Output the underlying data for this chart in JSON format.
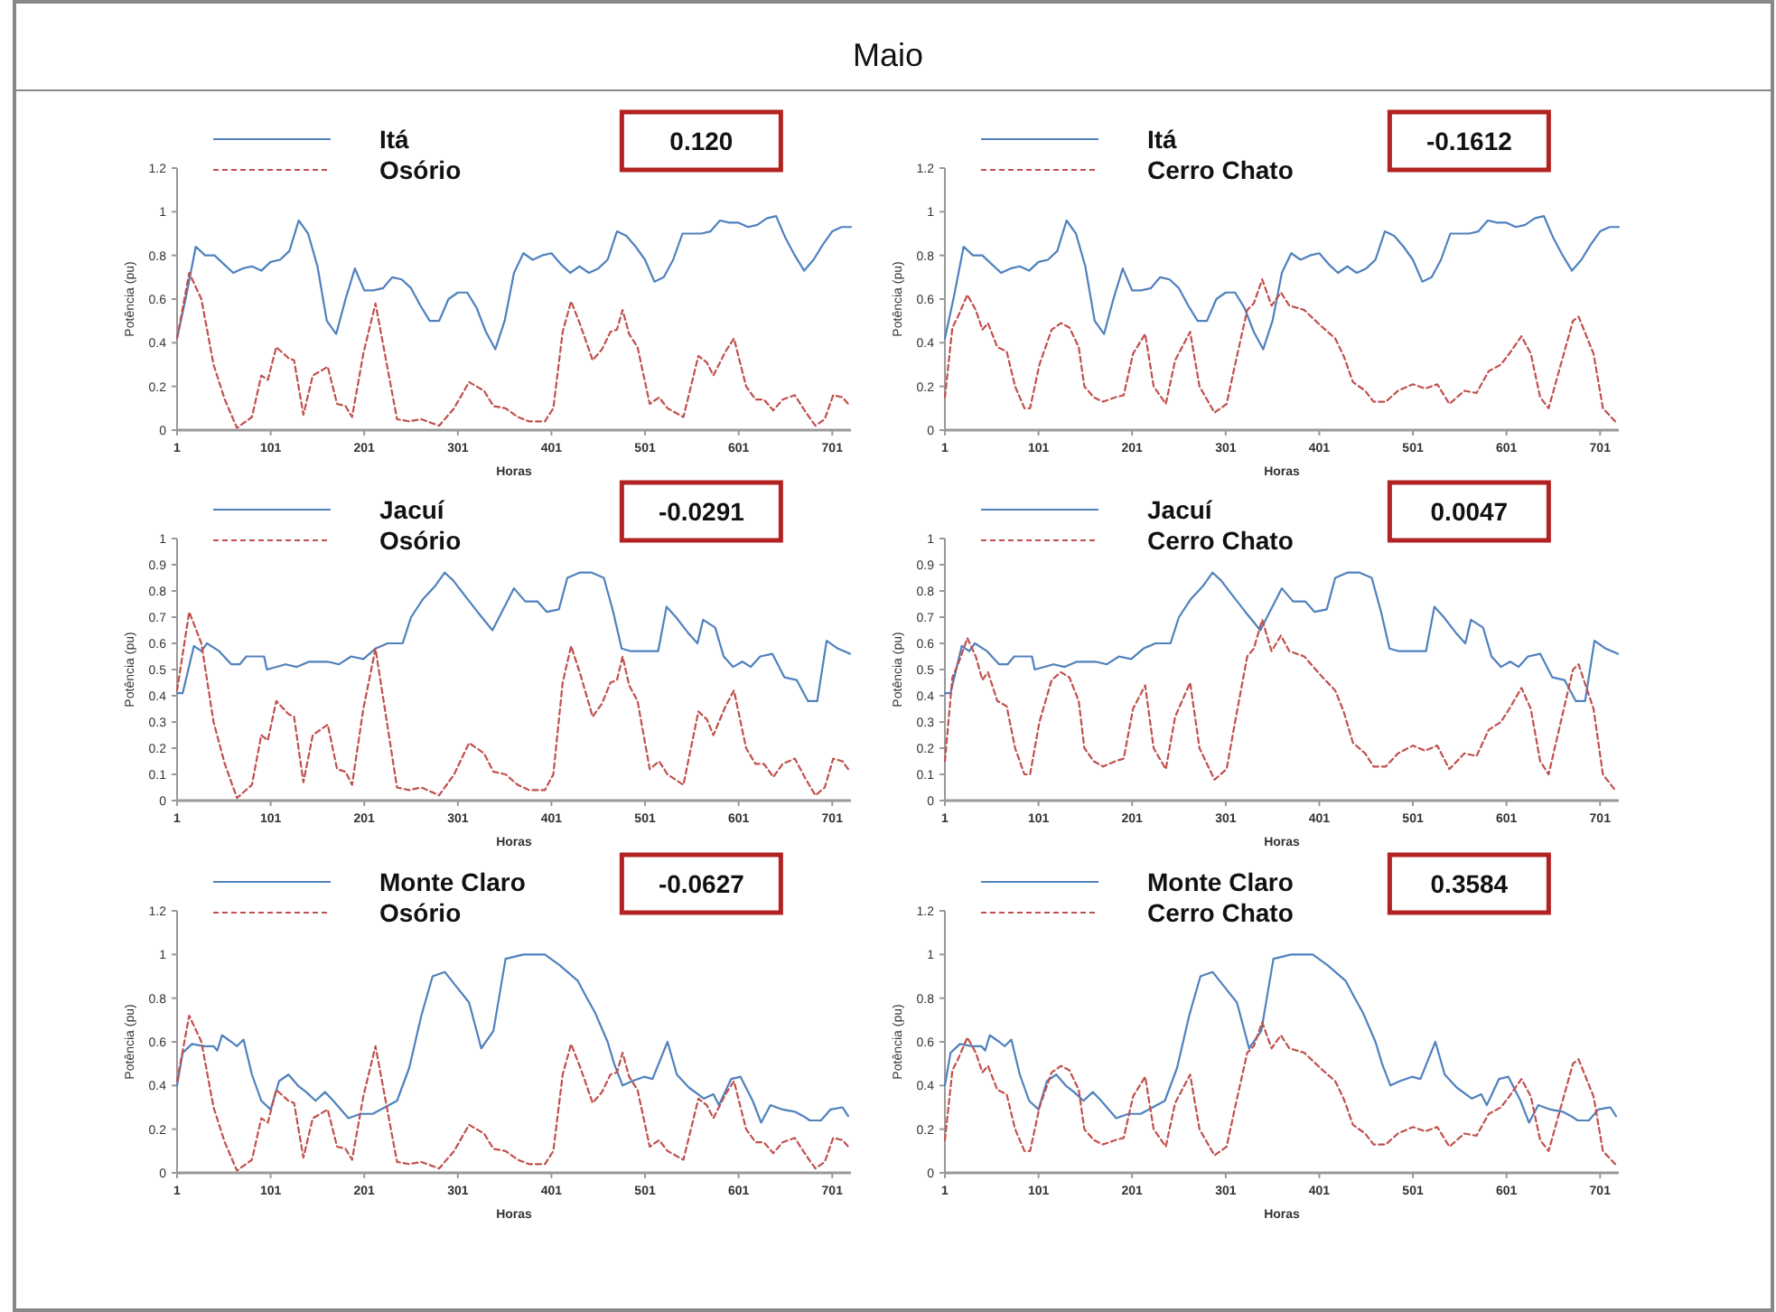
{
  "chart_data": [
    {
      "type": "line",
      "title": "Maio",
      "xlabel": "Horas",
      "ylabel": "Potência (pu)",
      "annotations": [
        "0.120"
      ],
      "legend": "top left",
      "xlim": [
        1,
        721
      ],
      "xticks": [
        1,
        101,
        201,
        301,
        401,
        501,
        601,
        701
      ],
      "ylim": [
        0,
        1.2
      ],
      "yticks": [
        0,
        0.2,
        0.4,
        0.6,
        0.8,
        1,
        1.2
      ],
      "series": [
        {
          "name": "Itá",
          "color": "#4f81bd",
          "line_style": "solid",
          "x": [
            1,
            11,
            21,
            31,
            41,
            51,
            61,
            71,
            81,
            91,
            101,
            111,
            121,
            131,
            141,
            151,
            161,
            171,
            181,
            191,
            201,
            211,
            221,
            231,
            241,
            251,
            261,
            271,
            281,
            291,
            301,
            311,
            321,
            331,
            341,
            351,
            361,
            371,
            381,
            391,
            401,
            411,
            421,
            431,
            441,
            451,
            461,
            471,
            481,
            491,
            501,
            511,
            521,
            531,
            541,
            551,
            561,
            571,
            581,
            591,
            601,
            611,
            621,
            631,
            641,
            651,
            661,
            671,
            681,
            691,
            701,
            711,
            721
          ],
          "values": [
            0.42,
            0.62,
            0.84,
            0.8,
            0.8,
            0.76,
            0.72,
            0.74,
            0.75,
            0.73,
            0.77,
            0.78,
            0.82,
            0.96,
            0.9,
            0.75,
            0.5,
            0.44,
            0.6,
            0.74,
            0.64,
            0.64,
            0.65,
            0.7,
            0.69,
            0.65,
            0.57,
            0.5,
            0.5,
            0.6,
            0.63,
            0.63,
            0.56,
            0.45,
            0.37,
            0.5,
            0.72,
            0.81,
            0.78,
            0.8,
            0.81,
            0.76,
            0.72,
            0.75,
            0.72,
            0.74,
            0.78,
            0.91,
            0.89,
            0.84,
            0.78,
            0.68,
            0.7,
            0.78,
            0.9,
            0.9,
            0.9,
            0.91,
            0.96,
            0.95,
            0.95,
            0.93,
            0.94,
            0.97,
            0.98,
            0.88,
            0.8,
            0.73,
            0.78,
            0.85,
            0.91,
            0.93,
            0.93
          ]
        },
        {
          "name": "Osório",
          "color": "#c0504d",
          "line_style": "dashed",
          "x": [
            1,
            14,
            27,
            40,
            52,
            65,
            81,
            91,
            98,
            107,
            120,
            126,
            136,
            146,
            162,
            172,
            181,
            188,
            200,
            213,
            223,
            236,
            249,
            262,
            281,
            297,
            313,
            329,
            339,
            352,
            365,
            377,
            394,
            403,
            413,
            422,
            432,
            445,
            455,
            464,
            471,
            477,
            484,
            493,
            506,
            516,
            525,
            542,
            558,
            567,
            574,
            587,
            596,
            609,
            619,
            628,
            638,
            648,
            661,
            673,
            683,
            693,
            702,
            712,
            718
          ],
          "values": [
            0.42,
            0.72,
            0.6,
            0.3,
            0.14,
            0.01,
            0.06,
            0.25,
            0.23,
            0.38,
            0.33,
            0.32,
            0.07,
            0.25,
            0.29,
            0.12,
            0.11,
            0.06,
            0.35,
            0.58,
            0.35,
            0.05,
            0.04,
            0.05,
            0.02,
            0.1,
            0.22,
            0.18,
            0.11,
            0.1,
            0.06,
            0.04,
            0.04,
            0.1,
            0.45,
            0.59,
            0.48,
            0.32,
            0.37,
            0.45,
            0.46,
            0.55,
            0.44,
            0.38,
            0.12,
            0.15,
            0.1,
            0.06,
            0.34,
            0.31,
            0.25,
            0.36,
            0.42,
            0.2,
            0.14,
            0.14,
            0.09,
            0.14,
            0.16,
            0.08,
            0.02,
            0.05,
            0.16,
            0.15,
            0.12
          ]
        }
      ]
    },
    {
      "type": "line",
      "xlabel": "Horas",
      "ylabel": "Potência (pu)",
      "annotations": [
        "-0.1612"
      ],
      "legend": "top left",
      "xlim": [
        1,
        721
      ],
      "xticks": [
        1,
        101,
        201,
        301,
        401,
        501,
        601,
        701
      ],
      "ylim": [
        0,
        1.2
      ],
      "yticks": [
        0,
        0.2,
        0.4,
        0.6,
        0.8,
        1,
        1.2
      ],
      "series": [
        {
          "name": "Itá",
          "color": "#4f81bd",
          "line_style": "solid",
          "x": [
            1,
            11,
            21,
            31,
            41,
            51,
            61,
            71,
            81,
            91,
            101,
            111,
            121,
            131,
            141,
            151,
            161,
            171,
            181,
            191,
            201,
            211,
            221,
            231,
            241,
            251,
            261,
            271,
            281,
            291,
            301,
            311,
            321,
            331,
            341,
            351,
            361,
            371,
            381,
            391,
            401,
            411,
            421,
            431,
            441,
            451,
            461,
            471,
            481,
            491,
            501,
            511,
            521,
            531,
            541,
            551,
            561,
            571,
            581,
            591,
            601,
            611,
            621,
            631,
            641,
            651,
            661,
            671,
            681,
            691,
            701,
            711,
            721
          ],
          "values": [
            0.42,
            0.62,
            0.84,
            0.8,
            0.8,
            0.76,
            0.72,
            0.74,
            0.75,
            0.73,
            0.77,
            0.78,
            0.82,
            0.96,
            0.9,
            0.75,
            0.5,
            0.44,
            0.6,
            0.74,
            0.64,
            0.64,
            0.65,
            0.7,
            0.69,
            0.65,
            0.57,
            0.5,
            0.5,
            0.6,
            0.63,
            0.63,
            0.56,
            0.45,
            0.37,
            0.5,
            0.72,
            0.81,
            0.78,
            0.8,
            0.81,
            0.76,
            0.72,
            0.75,
            0.72,
            0.74,
            0.78,
            0.91,
            0.89,
            0.84,
            0.78,
            0.68,
            0.7,
            0.78,
            0.9,
            0.9,
            0.9,
            0.91,
            0.96,
            0.95,
            0.95,
            0.93,
            0.94,
            0.97,
            0.98,
            0.88,
            0.8,
            0.73,
            0.78,
            0.85,
            0.91,
            0.93,
            0.93
          ]
        },
        {
          "name": "Cerro Chato",
          "color": "#c0504d",
          "line_style": "dashed",
          "x": [
            1,
            9,
            15,
            25,
            34,
            41,
            47,
            57,
            67,
            76,
            86,
            92,
            102,
            115,
            125,
            134,
            144,
            150,
            160,
            170,
            183,
            192,
            202,
            215,
            224,
            237,
            247,
            263,
            273,
            289,
            302,
            311,
            324,
            331,
            340,
            350,
            360,
            369,
            385,
            402,
            418,
            427,
            437,
            450,
            459,
            472,
            485,
            501,
            514,
            527,
            540,
            556,
            569,
            582,
            595,
            604,
            617,
            627,
            637,
            646,
            659,
            672,
            678,
            694,
            704,
            717
          ],
          "values": [
            0.15,
            0.47,
            0.52,
            0.62,
            0.55,
            0.46,
            0.49,
            0.38,
            0.36,
            0.2,
            0.1,
            0.1,
            0.3,
            0.46,
            0.49,
            0.47,
            0.38,
            0.2,
            0.15,
            0.13,
            0.15,
            0.16,
            0.35,
            0.44,
            0.2,
            0.12,
            0.32,
            0.45,
            0.2,
            0.08,
            0.12,
            0.3,
            0.55,
            0.58,
            0.69,
            0.57,
            0.63,
            0.57,
            0.55,
            0.48,
            0.42,
            0.34,
            0.22,
            0.18,
            0.13,
            0.13,
            0.18,
            0.21,
            0.19,
            0.21,
            0.12,
            0.18,
            0.17,
            0.27,
            0.3,
            0.35,
            0.43,
            0.35,
            0.15,
            0.1,
            0.3,
            0.5,
            0.52,
            0.35,
            0.1,
            0.04
          ]
        }
      ]
    },
    {
      "type": "line",
      "xlabel": "Horas",
      "ylabel": "Potência (pu)",
      "annotations": [
        "-0.0291"
      ],
      "legend": "top left",
      "xlim": [
        1,
        721
      ],
      "xticks": [
        1,
        101,
        201,
        301,
        401,
        501,
        601,
        701
      ],
      "ylim": [
        0,
        1
      ],
      "yticks": [
        0,
        0.1,
        0.2,
        0.3,
        0.4,
        0.5,
        0.6,
        0.7,
        0.8,
        0.9,
        1
      ],
      "series": [
        {
          "name": "Jacuí",
          "color": "#4f81bd",
          "line_style": "solid",
          "x": [
            1,
            7,
            19,
            27,
            33,
            46,
            59,
            68,
            75,
            94,
            97,
            117,
            129,
            142,
            162,
            174,
            187,
            200,
            213,
            226,
            242,
            251,
            264,
            277,
            287,
            296,
            309,
            322,
            338,
            348,
            361,
            373,
            386,
            396,
            409,
            418,
            431,
            444,
            457,
            467,
            476,
            486,
            502,
            515,
            524,
            534,
            547,
            557,
            563,
            576,
            585,
            595,
            605,
            614,
            624,
            637,
            650,
            663,
            675,
            685,
            695,
            707,
            720
          ],
          "values": [
            0.41,
            0.41,
            0.59,
            0.57,
            0.6,
            0.57,
            0.52,
            0.52,
            0.55,
            0.55,
            0.5,
            0.52,
            0.51,
            0.53,
            0.53,
            0.52,
            0.55,
            0.54,
            0.58,
            0.6,
            0.6,
            0.7,
            0.77,
            0.82,
            0.87,
            0.84,
            0.78,
            0.72,
            0.65,
            0.72,
            0.81,
            0.76,
            0.76,
            0.72,
            0.73,
            0.85,
            0.87,
            0.87,
            0.85,
            0.72,
            0.58,
            0.57,
            0.57,
            0.57,
            0.74,
            0.7,
            0.64,
            0.6,
            0.69,
            0.66,
            0.55,
            0.51,
            0.53,
            0.51,
            0.55,
            0.56,
            0.47,
            0.46,
            0.38,
            0.38,
            0.61,
            0.58,
            0.56
          ]
        },
        {
          "name": "Osório",
          "color": "#c0504d",
          "line_style": "dashed",
          "x": [
            1,
            14,
            27,
            40,
            52,
            65,
            81,
            91,
            98,
            107,
            120,
            126,
            136,
            146,
            162,
            172,
            181,
            188,
            200,
            213,
            223,
            236,
            249,
            262,
            281,
            297,
            313,
            329,
            339,
            352,
            365,
            377,
            394,
            403,
            413,
            422,
            432,
            445,
            455,
            464,
            471,
            477,
            484,
            493,
            506,
            516,
            525,
            542,
            558,
            567,
            574,
            587,
            596,
            609,
            619,
            628,
            638,
            648,
            661,
            673,
            683,
            693,
            702,
            712,
            718
          ],
          "values": [
            0.42,
            0.72,
            0.6,
            0.3,
            0.14,
            0.01,
            0.06,
            0.25,
            0.23,
            0.38,
            0.33,
            0.32,
            0.07,
            0.25,
            0.29,
            0.12,
            0.11,
            0.06,
            0.35,
            0.58,
            0.35,
            0.05,
            0.04,
            0.05,
            0.02,
            0.1,
            0.22,
            0.18,
            0.11,
            0.1,
            0.06,
            0.04,
            0.04,
            0.1,
            0.45,
            0.59,
            0.48,
            0.32,
            0.37,
            0.45,
            0.46,
            0.55,
            0.44,
            0.38,
            0.12,
            0.15,
            0.1,
            0.06,
            0.34,
            0.31,
            0.25,
            0.36,
            0.42,
            0.2,
            0.14,
            0.14,
            0.09,
            0.14,
            0.16,
            0.08,
            0.02,
            0.05,
            0.16,
            0.15,
            0.12
          ]
        }
      ]
    },
    {
      "type": "line",
      "xlabel": "Horas",
      "ylabel": "Potência (pu)",
      "annotations": [
        "0.0047"
      ],
      "legend": "top left",
      "xlim": [
        1,
        721
      ],
      "xticks": [
        1,
        101,
        201,
        301,
        401,
        501,
        601,
        701
      ],
      "ylim": [
        0,
        1
      ],
      "yticks": [
        0,
        0.1,
        0.2,
        0.3,
        0.4,
        0.5,
        0.6,
        0.7,
        0.8,
        0.9,
        1
      ],
      "series": [
        {
          "name": "Jacuí",
          "color": "#4f81bd",
          "line_style": "solid",
          "x": [
            1,
            7,
            19,
            27,
            33,
            46,
            59,
            68,
            75,
            94,
            97,
            117,
            129,
            142,
            162,
            174,
            187,
            200,
            213,
            226,
            242,
            251,
            264,
            277,
            287,
            296,
            309,
            322,
            338,
            348,
            361,
            373,
            386,
            396,
            409,
            418,
            431,
            444,
            457,
            467,
            476,
            486,
            502,
            515,
            524,
            534,
            547,
            557,
            563,
            576,
            585,
            595,
            605,
            614,
            624,
            637,
            650,
            663,
            675,
            685,
            695,
            707,
            720
          ],
          "values": [
            0.41,
            0.41,
            0.59,
            0.57,
            0.6,
            0.57,
            0.52,
            0.52,
            0.55,
            0.55,
            0.5,
            0.52,
            0.51,
            0.53,
            0.53,
            0.52,
            0.55,
            0.54,
            0.58,
            0.6,
            0.6,
            0.7,
            0.77,
            0.82,
            0.87,
            0.84,
            0.78,
            0.72,
            0.65,
            0.72,
            0.81,
            0.76,
            0.76,
            0.72,
            0.73,
            0.85,
            0.87,
            0.87,
            0.85,
            0.72,
            0.58,
            0.57,
            0.57,
            0.57,
            0.74,
            0.7,
            0.64,
            0.6,
            0.69,
            0.66,
            0.55,
            0.51,
            0.53,
            0.51,
            0.55,
            0.56,
            0.47,
            0.46,
            0.38,
            0.38,
            0.61,
            0.58,
            0.56
          ]
        },
        {
          "name": "Cerro Chato",
          "color": "#c0504d",
          "line_style": "dashed",
          "x": [
            1,
            9,
            15,
            25,
            34,
            41,
            47,
            57,
            67,
            76,
            86,
            92,
            102,
            115,
            125,
            134,
            144,
            150,
            160,
            170,
            183,
            192,
            202,
            215,
            224,
            237,
            247,
            263,
            273,
            289,
            302,
            311,
            324,
            331,
            340,
            350,
            360,
            369,
            385,
            402,
            418,
            427,
            437,
            450,
            459,
            472,
            485,
            501,
            514,
            527,
            540,
            556,
            569,
            582,
            595,
            604,
            617,
            627,
            637,
            646,
            659,
            672,
            678,
            694,
            704,
            717
          ],
          "values": [
            0.15,
            0.47,
            0.52,
            0.62,
            0.55,
            0.46,
            0.49,
            0.38,
            0.36,
            0.2,
            0.1,
            0.1,
            0.3,
            0.46,
            0.49,
            0.47,
            0.38,
            0.2,
            0.15,
            0.13,
            0.15,
            0.16,
            0.35,
            0.44,
            0.2,
            0.12,
            0.32,
            0.45,
            0.2,
            0.08,
            0.12,
            0.3,
            0.55,
            0.58,
            0.69,
            0.57,
            0.63,
            0.57,
            0.55,
            0.48,
            0.42,
            0.34,
            0.22,
            0.18,
            0.13,
            0.13,
            0.18,
            0.21,
            0.19,
            0.21,
            0.12,
            0.18,
            0.17,
            0.27,
            0.3,
            0.35,
            0.43,
            0.35,
            0.15,
            0.1,
            0.3,
            0.5,
            0.52,
            0.35,
            0.1,
            0.04
          ]
        }
      ]
    },
    {
      "type": "line",
      "xlabel": "Horas",
      "ylabel": "Potência (pu)",
      "annotations": [
        "-0.0627"
      ],
      "legend": "top left",
      "xlim": [
        1,
        721
      ],
      "xticks": [
        1,
        101,
        201,
        301,
        401,
        501,
        601,
        701
      ],
      "ylim": [
        0,
        1.2
      ],
      "yticks": [
        0,
        0.2,
        0.4,
        0.6,
        0.8,
        1,
        1.2
      ],
      "series": [
        {
          "name": "Monte Claro",
          "color": "#4f81bd",
          "line_style": "solid",
          "x": [
            1,
            7,
            17,
            30,
            40,
            44,
            49,
            59,
            65,
            72,
            81,
            91,
            101,
            110,
            120,
            130,
            139,
            149,
            159,
            168,
            184,
            197,
            210,
            223,
            236,
            249,
            262,
            274,
            287,
            300,
            313,
            326,
            339,
            352,
            371,
            394,
            410,
            429,
            439,
            448,
            461,
            468,
            477,
            487,
            500,
            509,
            525,
            535,
            548,
            564,
            574,
            580,
            593,
            603,
            616,
            625,
            635,
            648,
            661,
            670,
            677,
            689,
            699,
            712,
            718
          ],
          "values": [
            0.4,
            0.55,
            0.59,
            0.58,
            0.58,
            0.56,
            0.63,
            0.6,
            0.58,
            0.61,
            0.45,
            0.33,
            0.29,
            0.42,
            0.45,
            0.4,
            0.37,
            0.33,
            0.37,
            0.33,
            0.25,
            0.27,
            0.27,
            0.3,
            0.33,
            0.48,
            0.72,
            0.9,
            0.92,
            0.85,
            0.78,
            0.57,
            0.65,
            0.98,
            1.0,
            1.0,
            0.95,
            0.88,
            0.8,
            0.73,
            0.6,
            0.5,
            0.4,
            0.42,
            0.44,
            0.43,
            0.6,
            0.45,
            0.39,
            0.34,
            0.36,
            0.31,
            0.43,
            0.44,
            0.33,
            0.23,
            0.31,
            0.29,
            0.28,
            0.26,
            0.24,
            0.24,
            0.29,
            0.3,
            0.26
          ]
        },
        {
          "name": "Osório",
          "color": "#c0504d",
          "line_style": "dashed",
          "x": [
            1,
            14,
            27,
            40,
            52,
            65,
            81,
            91,
            98,
            107,
            120,
            126,
            136,
            146,
            162,
            172,
            181,
            188,
            200,
            213,
            223,
            236,
            249,
            262,
            281,
            297,
            313,
            329,
            339,
            352,
            365,
            377,
            394,
            403,
            413,
            422,
            432,
            445,
            455,
            464,
            471,
            477,
            484,
            493,
            506,
            516,
            525,
            542,
            558,
            567,
            574,
            587,
            596,
            609,
            619,
            628,
            638,
            648,
            661,
            673,
            683,
            693,
            702,
            712,
            718
          ],
          "values": [
            0.42,
            0.72,
            0.6,
            0.3,
            0.14,
            0.01,
            0.06,
            0.25,
            0.23,
            0.38,
            0.33,
            0.32,
            0.07,
            0.25,
            0.29,
            0.12,
            0.11,
            0.06,
            0.35,
            0.58,
            0.35,
            0.05,
            0.04,
            0.05,
            0.02,
            0.1,
            0.22,
            0.18,
            0.11,
            0.1,
            0.06,
            0.04,
            0.04,
            0.1,
            0.45,
            0.59,
            0.48,
            0.32,
            0.37,
            0.45,
            0.46,
            0.55,
            0.44,
            0.38,
            0.12,
            0.15,
            0.1,
            0.06,
            0.34,
            0.31,
            0.25,
            0.36,
            0.42,
            0.2,
            0.14,
            0.14,
            0.09,
            0.14,
            0.16,
            0.08,
            0.02,
            0.05,
            0.16,
            0.15,
            0.12
          ]
        }
      ]
    },
    {
      "type": "line",
      "xlabel": "Horas",
      "ylabel": "Potência (pu)",
      "annotations": [
        "0.3584"
      ],
      "legend": "top left",
      "xlim": [
        1,
        721
      ],
      "xticks": [
        1,
        101,
        201,
        301,
        401,
        501,
        601,
        701
      ],
      "ylim": [
        0,
        1.2
      ],
      "yticks": [
        0,
        0.2,
        0.4,
        0.6,
        0.8,
        1,
        1.2
      ],
      "series": [
        {
          "name": "Monte Claro",
          "color": "#4f81bd",
          "line_style": "solid",
          "x": [
            1,
            7,
            17,
            30,
            40,
            44,
            49,
            59,
            65,
            72,
            81,
            91,
            101,
            110,
            120,
            130,
            139,
            149,
            159,
            168,
            184,
            197,
            210,
            223,
            236,
            249,
            262,
            274,
            287,
            300,
            313,
            326,
            339,
            352,
            371,
            394,
            410,
            429,
            439,
            448,
            461,
            468,
            477,
            487,
            500,
            509,
            525,
            535,
            548,
            564,
            574,
            580,
            593,
            603,
            616,
            625,
            635,
            648,
            661,
            670,
            677,
            689,
            699,
            712,
            718
          ],
          "values": [
            0.4,
            0.55,
            0.59,
            0.58,
            0.58,
            0.56,
            0.63,
            0.6,
            0.58,
            0.61,
            0.45,
            0.33,
            0.29,
            0.42,
            0.45,
            0.4,
            0.37,
            0.33,
            0.37,
            0.33,
            0.25,
            0.27,
            0.27,
            0.3,
            0.33,
            0.48,
            0.72,
            0.9,
            0.92,
            0.85,
            0.78,
            0.57,
            0.65,
            0.98,
            1.0,
            1.0,
            0.95,
            0.88,
            0.8,
            0.73,
            0.6,
            0.5,
            0.4,
            0.42,
            0.44,
            0.43,
            0.6,
            0.45,
            0.39,
            0.34,
            0.36,
            0.31,
            0.43,
            0.44,
            0.33,
            0.23,
            0.31,
            0.29,
            0.28,
            0.26,
            0.24,
            0.24,
            0.29,
            0.3,
            0.26
          ]
        },
        {
          "name": "Cerro Chato",
          "color": "#c0504d",
          "line_style": "dashed",
          "x": [
            1,
            9,
            15,
            25,
            34,
            41,
            47,
            57,
            67,
            76,
            86,
            92,
            102,
            115,
            125,
            134,
            144,
            150,
            160,
            170,
            183,
            192,
            202,
            215,
            224,
            237,
            247,
            263,
            273,
            289,
            302,
            311,
            324,
            331,
            340,
            350,
            360,
            369,
            385,
            402,
            418,
            427,
            437,
            450,
            459,
            472,
            485,
            501,
            514,
            527,
            540,
            556,
            569,
            582,
            595,
            604,
            617,
            627,
            637,
            646,
            659,
            672,
            678,
            694,
            704,
            717
          ],
          "values": [
            0.15,
            0.47,
            0.52,
            0.62,
            0.55,
            0.46,
            0.49,
            0.38,
            0.36,
            0.2,
            0.1,
            0.1,
            0.3,
            0.46,
            0.49,
            0.47,
            0.38,
            0.2,
            0.15,
            0.13,
            0.15,
            0.16,
            0.35,
            0.44,
            0.2,
            0.12,
            0.32,
            0.45,
            0.2,
            0.08,
            0.12,
            0.3,
            0.55,
            0.58,
            0.69,
            0.57,
            0.63,
            0.57,
            0.55,
            0.48,
            0.42,
            0.34,
            0.22,
            0.18,
            0.13,
            0.13,
            0.18,
            0.21,
            0.19,
            0.21,
            0.12,
            0.18,
            0.17,
            0.27,
            0.3,
            0.35,
            0.43,
            0.35,
            0.15,
            0.1,
            0.3,
            0.5,
            0.52,
            0.35,
            0.1,
            0.04
          ]
        }
      ]
    }
  ]
}
